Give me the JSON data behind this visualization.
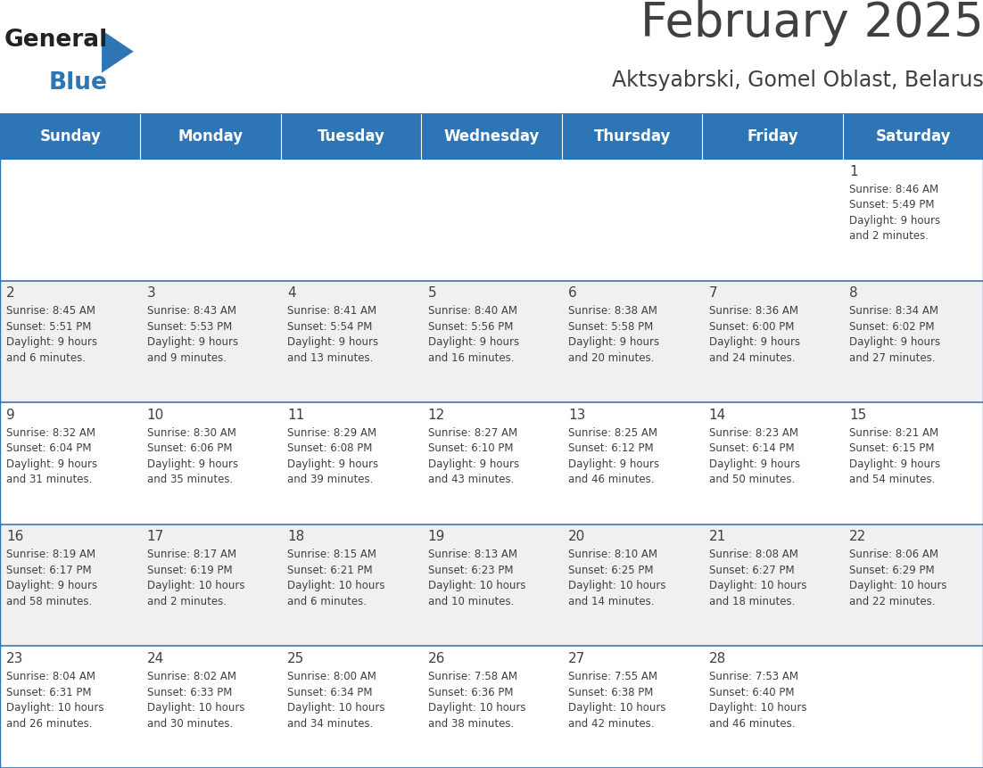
{
  "title": "February 2025",
  "subtitle": "Aktsyabrski, Gomel Oblast, Belarus",
  "header_bg": "#2E75B6",
  "header_text_color": "#FFFFFF",
  "cell_bg_white": "#FFFFFF",
  "cell_bg_gray": "#F0F0F0",
  "border_color": "#2E75B6",
  "row_line_color": "#4472A8",
  "text_color": "#404040",
  "days_of_week": [
    "Sunday",
    "Monday",
    "Tuesday",
    "Wednesday",
    "Thursday",
    "Friday",
    "Saturday"
  ],
  "calendar_data": [
    [
      {
        "day": null,
        "info": null
      },
      {
        "day": null,
        "info": null
      },
      {
        "day": null,
        "info": null
      },
      {
        "day": null,
        "info": null
      },
      {
        "day": null,
        "info": null
      },
      {
        "day": null,
        "info": null
      },
      {
        "day": 1,
        "info": "Sunrise: 8:46 AM\nSunset: 5:49 PM\nDaylight: 9 hours\nand 2 minutes."
      }
    ],
    [
      {
        "day": 2,
        "info": "Sunrise: 8:45 AM\nSunset: 5:51 PM\nDaylight: 9 hours\nand 6 minutes."
      },
      {
        "day": 3,
        "info": "Sunrise: 8:43 AM\nSunset: 5:53 PM\nDaylight: 9 hours\nand 9 minutes."
      },
      {
        "day": 4,
        "info": "Sunrise: 8:41 AM\nSunset: 5:54 PM\nDaylight: 9 hours\nand 13 minutes."
      },
      {
        "day": 5,
        "info": "Sunrise: 8:40 AM\nSunset: 5:56 PM\nDaylight: 9 hours\nand 16 minutes."
      },
      {
        "day": 6,
        "info": "Sunrise: 8:38 AM\nSunset: 5:58 PM\nDaylight: 9 hours\nand 20 minutes."
      },
      {
        "day": 7,
        "info": "Sunrise: 8:36 AM\nSunset: 6:00 PM\nDaylight: 9 hours\nand 24 minutes."
      },
      {
        "day": 8,
        "info": "Sunrise: 8:34 AM\nSunset: 6:02 PM\nDaylight: 9 hours\nand 27 minutes."
      }
    ],
    [
      {
        "day": 9,
        "info": "Sunrise: 8:32 AM\nSunset: 6:04 PM\nDaylight: 9 hours\nand 31 minutes."
      },
      {
        "day": 10,
        "info": "Sunrise: 8:30 AM\nSunset: 6:06 PM\nDaylight: 9 hours\nand 35 minutes."
      },
      {
        "day": 11,
        "info": "Sunrise: 8:29 AM\nSunset: 6:08 PM\nDaylight: 9 hours\nand 39 minutes."
      },
      {
        "day": 12,
        "info": "Sunrise: 8:27 AM\nSunset: 6:10 PM\nDaylight: 9 hours\nand 43 minutes."
      },
      {
        "day": 13,
        "info": "Sunrise: 8:25 AM\nSunset: 6:12 PM\nDaylight: 9 hours\nand 46 minutes."
      },
      {
        "day": 14,
        "info": "Sunrise: 8:23 AM\nSunset: 6:14 PM\nDaylight: 9 hours\nand 50 minutes."
      },
      {
        "day": 15,
        "info": "Sunrise: 8:21 AM\nSunset: 6:15 PM\nDaylight: 9 hours\nand 54 minutes."
      }
    ],
    [
      {
        "day": 16,
        "info": "Sunrise: 8:19 AM\nSunset: 6:17 PM\nDaylight: 9 hours\nand 58 minutes."
      },
      {
        "day": 17,
        "info": "Sunrise: 8:17 AM\nSunset: 6:19 PM\nDaylight: 10 hours\nand 2 minutes."
      },
      {
        "day": 18,
        "info": "Sunrise: 8:15 AM\nSunset: 6:21 PM\nDaylight: 10 hours\nand 6 minutes."
      },
      {
        "day": 19,
        "info": "Sunrise: 8:13 AM\nSunset: 6:23 PM\nDaylight: 10 hours\nand 10 minutes."
      },
      {
        "day": 20,
        "info": "Sunrise: 8:10 AM\nSunset: 6:25 PM\nDaylight: 10 hours\nand 14 minutes."
      },
      {
        "day": 21,
        "info": "Sunrise: 8:08 AM\nSunset: 6:27 PM\nDaylight: 10 hours\nand 18 minutes."
      },
      {
        "day": 22,
        "info": "Sunrise: 8:06 AM\nSunset: 6:29 PM\nDaylight: 10 hours\nand 22 minutes."
      }
    ],
    [
      {
        "day": 23,
        "info": "Sunrise: 8:04 AM\nSunset: 6:31 PM\nDaylight: 10 hours\nand 26 minutes."
      },
      {
        "day": 24,
        "info": "Sunrise: 8:02 AM\nSunset: 6:33 PM\nDaylight: 10 hours\nand 30 minutes."
      },
      {
        "day": 25,
        "info": "Sunrise: 8:00 AM\nSunset: 6:34 PM\nDaylight: 10 hours\nand 34 minutes."
      },
      {
        "day": 26,
        "info": "Sunrise: 7:58 AM\nSunset: 6:36 PM\nDaylight: 10 hours\nand 38 minutes."
      },
      {
        "day": 27,
        "info": "Sunrise: 7:55 AM\nSunset: 6:38 PM\nDaylight: 10 hours\nand 42 minutes."
      },
      {
        "day": 28,
        "info": "Sunrise: 7:53 AM\nSunset: 6:40 PM\nDaylight: 10 hours\nand 46 minutes."
      },
      {
        "day": null,
        "info": null
      }
    ]
  ],
  "title_fontsize": 38,
  "subtitle_fontsize": 17,
  "header_fontsize": 12,
  "day_num_fontsize": 11,
  "info_fontsize": 8.5,
  "logo_general_color": "#222222",
  "logo_blue_color": "#2E75B6"
}
